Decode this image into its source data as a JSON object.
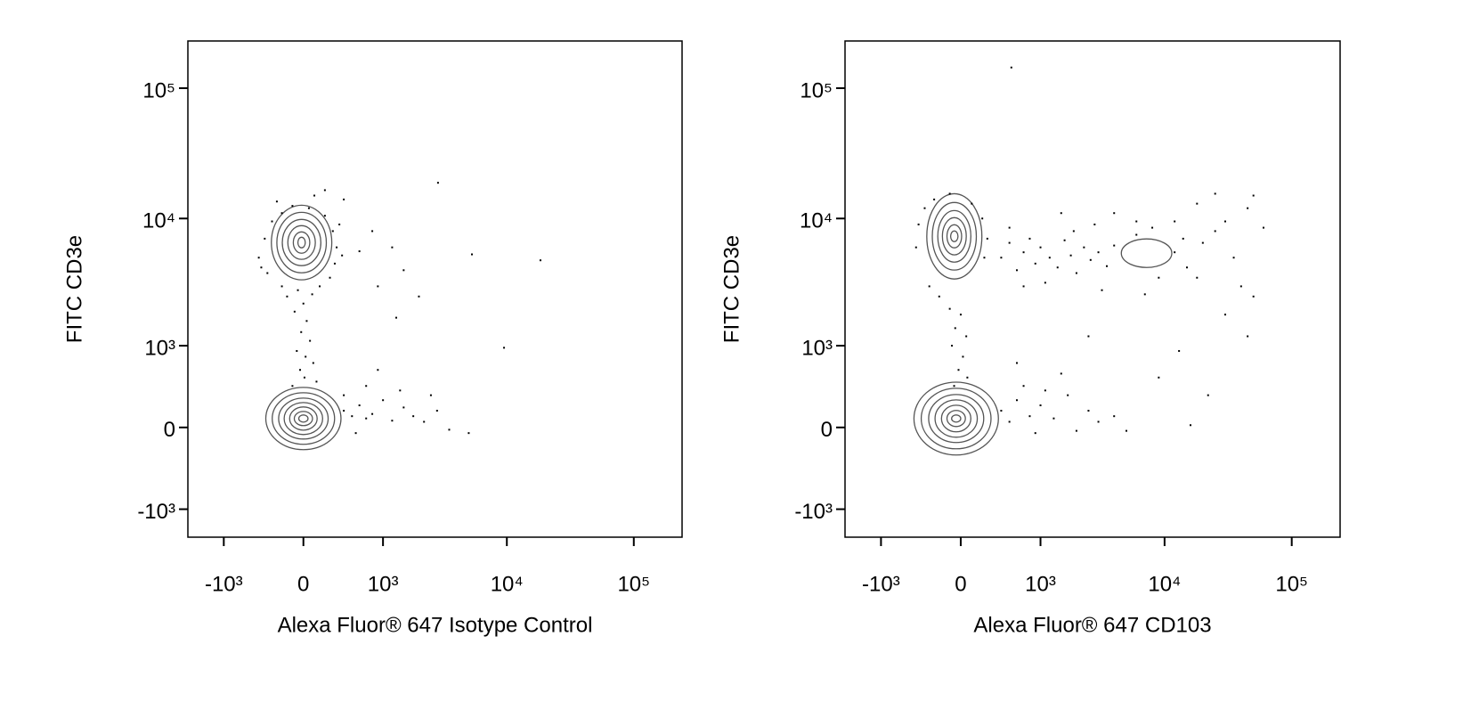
{
  "chart_data": [
    {
      "type": "scatter",
      "scale": "asinh",
      "xlabel": "Alexa Fluor® 647 Isotype Control",
      "ylabel": "FITC CD3e",
      "xlim": [
        -2000,
        240000
      ],
      "ylim": [
        -1700,
        230000
      ],
      "xticks": [
        {
          "value": -1000,
          "label": "-10³"
        },
        0,
        {
          "value": 1000,
          "label": "10³"
        },
        {
          "value": 10000,
          "label": "10⁴"
        },
        {
          "value": 100000,
          "label": "10⁵"
        }
      ],
      "yticks": [
        {
          "value": -1000,
          "label": "-10³"
        },
        0,
        {
          "value": 1000,
          "label": "10³"
        },
        {
          "value": 10000,
          "label": "10⁴"
        },
        {
          "value": 100000,
          "label": "10⁵"
        }
      ],
      "color": "#000000",
      "contour_color": "#555555",
      "contours": [
        {
          "rings": [
            [
              -368,
              368,
              -201,
              384
            ],
            [
              -298,
              298,
              -151,
              326
            ],
            [
              -232,
              232,
              -103,
              271
            ],
            [
              -178,
              178,
              -63,
              227
            ],
            [
              -126,
              126,
              -24,
              185
            ],
            [
              -83,
              83,
              16,
              143
            ],
            [
              -42,
              42,
              47,
              111
            ]
          ]
        },
        {
          "rings": [
            [
              -307,
              269,
              3370,
              12650
            ],
            [
              -250,
              214,
              3820,
              11150
            ],
            [
              -196,
              161,
              4340,
              9840
            ],
            [
              -143,
              109,
              4850,
              8810
            ],
            [
              -92,
              58,
              5410,
              7890
            ],
            [
              -50,
              17,
              5950,
              7180
            ]
          ]
        }
      ],
      "x": [
        -450,
        -380,
        -300,
        -200,
        -100,
        50,
        200,
        280,
        320,
        300,
        250,
        150,
        -50,
        -200,
        -350,
        -420,
        -250,
        100,
        200,
        400,
        350,
        380,
        -150,
        0,
        80,
        -80,
        30,
        -20,
        60,
        -60,
        20,
        90,
        -30,
        10,
        120,
        -100,
        400,
        500,
        600,
        700,
        800,
        1000,
        1200,
        1500,
        1800,
        2200,
        2800,
        3500,
        5000,
        700,
        900,
        400,
        550,
        1400,
        2500,
        2850,
        5300,
        18400,
        9500,
        800,
        1200,
        1500,
        900,
        2000,
        1300,
        600
      ],
      "y": [
        5000,
        7000,
        9500,
        11000,
        12500,
        12000,
        10500,
        8000,
        6000,
        4500,
        3500,
        3000,
        2800,
        3000,
        3800,
        4200,
        13500,
        15000,
        16500,
        14000,
        9000,
        5200,
        2500,
        2200,
        2600,
        1900,
        1600,
        1300,
        1100,
        900,
        800,
        700,
        600,
        500,
        450,
        400,
        150,
        100,
        200,
        80,
        120,
        250,
        60,
        180,
        100,
        50,
        150,
        -20,
        -50,
        400,
        600,
        300,
        -50,
        350,
        300,
        18800,
        5300,
        4770,
        960,
        8000,
        6000,
        4000,
        3000,
        2500,
        1700,
        5600
      ]
    },
    {
      "type": "scatter",
      "scale": "asinh",
      "xlabel": "Alexa Fluor® 647 CD103",
      "ylabel": "FITC CD3e",
      "xlim": [
        -2000,
        240000
      ],
      "ylim": [
        -1700,
        230000
      ],
      "xticks": [
        {
          "value": -1000,
          "label": "-10³"
        },
        0,
        {
          "value": 1000,
          "label": "10³"
        },
        {
          "value": 10000,
          "label": "10⁴"
        },
        {
          "value": 100000,
          "label": "10⁵"
        }
      ],
      "yticks": [
        {
          "value": -1000,
          "label": "-10³"
        },
        0,
        {
          "value": 1000,
          "label": "10³"
        },
        {
          "value": 10000,
          "label": "10⁴"
        },
        {
          "value": 100000,
          "label": "10⁵"
        }
      ],
      "color": "#000000",
      "contour_color": "#555555",
      "contours": [
        {
          "rings": [
            [
              -476,
              368,
              -253,
              444
            ],
            [
              -389,
              288,
              -193,
              374
            ],
            [
              -307,
              214,
              -135,
              307
            ],
            [
              -241,
              152,
              -87,
              253
            ],
            [
              -178,
              92,
              -39,
              201
            ],
            [
              -126,
              42,
              8,
              152
            ],
            [
              -83,
              0,
              47,
              111
            ]
          ]
        },
        {
          "rings": [
            [
              -327,
              196,
              3420,
              15500
            ],
            [
              -269,
              143,
              4010,
              13270
            ],
            [
              -214,
              92,
              4620,
              11500
            ],
            [
              -169,
              50,
              5250,
              10150
            ],
            [
              -126,
              8,
              5950,
              8950
            ],
            [
              -92,
              -25,
              6640,
              8020
            ]
          ]
        },
        {
          "rings": [
            [
              4560,
              11400,
              4200,
              6970
            ]
          ]
        }
      ],
      "x": [
        -450,
        -420,
        -350,
        -250,
        -100,
        100,
        200,
        250,
        220,
        -300,
        -200,
        -100,
        0,
        -50,
        50,
        -80,
        20,
        -20,
        60,
        -60,
        400,
        500,
        600,
        700,
        800,
        900,
        1000,
        1200,
        1400,
        1600,
        1800,
        2000,
        2300,
        2600,
        3000,
        3500,
        4000,
        1100,
        1900,
        2800,
        500,
        700,
        3200,
        6000,
        8000,
        12000,
        14000,
        15000,
        18000,
        20000,
        25000,
        30000,
        35000,
        40000,
        45000,
        50000,
        25000,
        18000,
        12000,
        9000,
        7000,
        6000,
        4000,
        1500,
        600,
        2500,
        13000,
        45000,
        30000,
        22000,
        50000,
        60000,
        9000,
        16000,
        4000,
        5000,
        400,
        500,
        600,
        800,
        1000,
        1300,
        1700,
        2000,
        2500,
        3000,
        700,
        900,
        1100,
        1500,
        525
      ],
      "y": [
        6000,
        9000,
        12000,
        14000,
        15500,
        13000,
        10000,
        7000,
        5000,
        3000,
        2500,
        2000,
        1800,
        1400,
        1200,
        1000,
        800,
        600,
        500,
        400,
        5000,
        6500,
        4000,
        5500,
        7000,
        4500,
        6000,
        5000,
        4200,
        6800,
        5200,
        3800,
        6000,
        4800,
        5500,
        4300,
        6200,
        3200,
        8000,
        9000,
        8500,
        3000,
        2800,
        7500,
        8500,
        5500,
        7000,
        4200,
        3500,
        6500,
        8000,
        9500,
        5000,
        3000,
        12000,
        15000,
        15500,
        13000,
        9500,
        3500,
        2600,
        9500,
        11000,
        11000,
        700,
        1200,
        900,
        1200,
        1800,
        300,
        2500,
        8500,
        500,
        20,
        100,
        -30,
        150,
        50,
        250,
        100,
        200,
        80,
        300,
        -30,
        150,
        50,
        400,
        -50,
        350,
        550,
        144000
      ]
    }
  ]
}
